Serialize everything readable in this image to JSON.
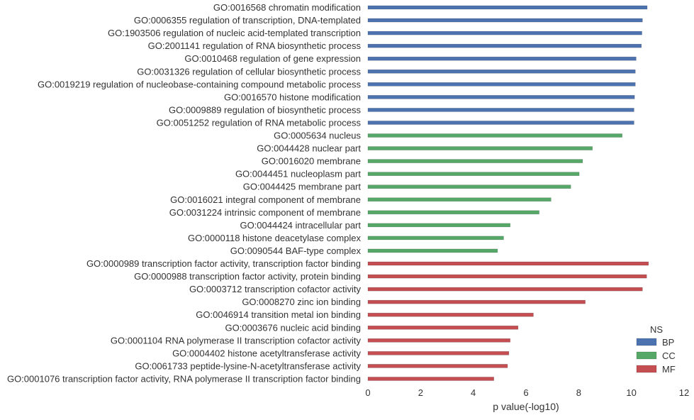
{
  "chart_data": {
    "type": "bar",
    "orientation": "horizontal",
    "xlabel": "p value(-log10)",
    "ylabel": "",
    "title": "",
    "xlim": [
      0,
      12
    ],
    "xticks": [
      0,
      2,
      4,
      6,
      8,
      10,
      12
    ],
    "grid": false,
    "legend": {
      "title": "NS",
      "placement": "bottom-right",
      "entries": [
        {
          "name": "BP",
          "color": "#4C72B0"
        },
        {
          "name": "CC",
          "color": "#55A868"
        },
        {
          "name": "MF",
          "color": "#C44E52"
        }
      ]
    },
    "bars": [
      {
        "label": "GO:0016568 chromatin modification",
        "value": 10.6,
        "ns": "BP"
      },
      {
        "label": "GO:0006355 regulation of transcription, DNA-templated",
        "value": 10.42,
        "ns": "BP"
      },
      {
        "label": "GO:1903506 regulation of nucleic acid-templated transcription",
        "value": 10.4,
        "ns": "BP"
      },
      {
        "label": "GO:2001141 regulation of RNA biosynthetic process",
        "value": 10.38,
        "ns": "BP"
      },
      {
        "label": "GO:0010468 regulation of gene expression",
        "value": 10.18,
        "ns": "BP"
      },
      {
        "label": "GO:0031326 regulation of cellular biosynthetic process",
        "value": 10.15,
        "ns": "BP"
      },
      {
        "label": "GO:0019219 regulation of nucleobase-containing compound metabolic process",
        "value": 10.15,
        "ns": "BP"
      },
      {
        "label": "GO:0016570 histone modification",
        "value": 10.12,
        "ns": "BP"
      },
      {
        "label": "GO:0009889 regulation of biosynthetic process",
        "value": 10.1,
        "ns": "BP"
      },
      {
        "label": "GO:0051252 regulation of RNA metabolic process",
        "value": 10.1,
        "ns": "BP"
      },
      {
        "label": "GO:0005634 nucleus",
        "value": 9.65,
        "ns": "CC"
      },
      {
        "label": "GO:0044428 nuclear part",
        "value": 8.52,
        "ns": "CC"
      },
      {
        "label": "GO:0016020 membrane",
        "value": 8.15,
        "ns": "CC"
      },
      {
        "label": "GO:0044451 nucleoplasm part",
        "value": 8.02,
        "ns": "CC"
      },
      {
        "label": "GO:0044425 membrane part",
        "value": 7.7,
        "ns": "CC"
      },
      {
        "label": "GO:0016021 integral component of membrane",
        "value": 6.95,
        "ns": "CC"
      },
      {
        "label": "GO:0031224 intrinsic component of membrane",
        "value": 6.5,
        "ns": "CC"
      },
      {
        "label": "GO:0044424 intracellular part",
        "value": 5.4,
        "ns": "CC"
      },
      {
        "label": "GO:0000118 histone deacetylase complex",
        "value": 5.15,
        "ns": "CC"
      },
      {
        "label": "GO:0090544 BAF-type complex",
        "value": 4.92,
        "ns": "CC"
      },
      {
        "label": "GO:0000989 transcription factor activity, transcription factor binding",
        "value": 10.65,
        "ns": "MF"
      },
      {
        "label": "GO:0000988 transcription factor activity, protein binding",
        "value": 10.58,
        "ns": "MF"
      },
      {
        "label": "GO:0003712 transcription cofactor activity",
        "value": 10.42,
        "ns": "MF"
      },
      {
        "label": "GO:0008270 zinc ion binding",
        "value": 8.25,
        "ns": "MF"
      },
      {
        "label": "GO:0046914 transition metal ion binding",
        "value": 6.28,
        "ns": "MF"
      },
      {
        "label": "GO:0003676 nucleic acid binding",
        "value": 5.7,
        "ns": "MF"
      },
      {
        "label": "GO:0001104 RNA polymerase II transcription cofactor activity",
        "value": 5.4,
        "ns": "MF"
      },
      {
        "label": "GO:0004402 histone acetyltransferase activity",
        "value": 5.35,
        "ns": "MF"
      },
      {
        "label": "GO:0061733 peptide-lysine-N-acetyltransferase activity",
        "value": 5.3,
        "ns": "MF"
      },
      {
        "label": "GO:0001076 transcription factor activity, RNA polymerase II transcription factor binding",
        "value": 4.78,
        "ns": "MF"
      }
    ]
  }
}
